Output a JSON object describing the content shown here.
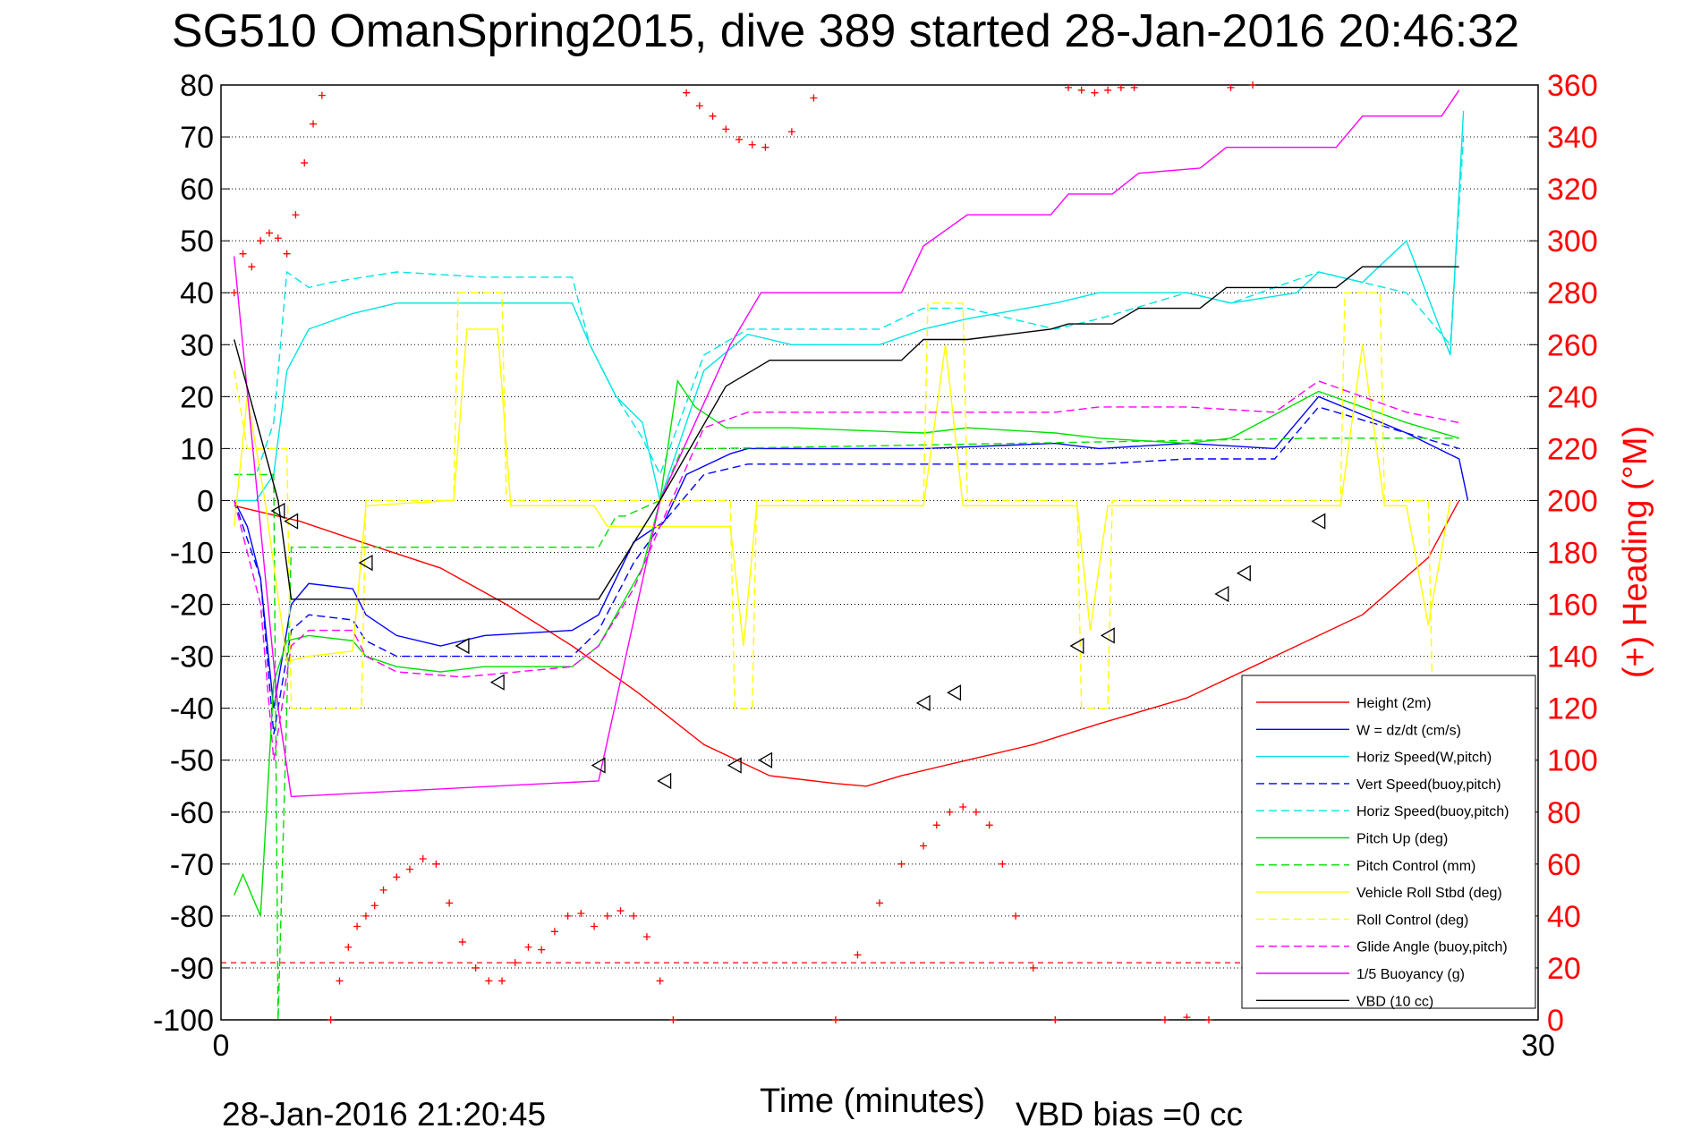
{
  "chart_data": {
    "type": "line",
    "title": "SG510 OmanSpring2015, dive 389 started 28-Jan-2016 20:46:32",
    "xlabel": "Time (minutes)",
    "ylabel_right": "(+) Heading (°M)",
    "footer_date": "28-Jan-2016 21:20:45",
    "footer_bias": "VBD bias =0 cc",
    "xlim": [
      0,
      30
    ],
    "ylim": [
      -100,
      80
    ],
    "ylim_right": [
      0,
      360
    ],
    "x_ticks": [
      "0",
      "30"
    ],
    "y_ticks": [
      "80",
      "70",
      "60",
      "50",
      "40",
      "30",
      "20",
      "10",
      "0",
      "-10",
      "-20",
      "-30",
      "-40",
      "-50",
      "-60",
      "-70",
      "-80",
      "-90",
      "-100"
    ],
    "y_ticks_right": [
      "360",
      "340",
      "320",
      "300",
      "280",
      "260",
      "240",
      "220",
      "200",
      "180",
      "160",
      "140",
      "120",
      "100",
      "80",
      "60",
      "40",
      "20",
      "0"
    ],
    "grid": true,
    "legend_position": "bottom-right",
    "series": [
      {
        "name": "Height (2m)",
        "color": "#ff0000",
        "dash": "",
        "x": [
          0.3,
          1.8,
          3.2,
          5.0,
          6.5,
          8.0,
          9.5,
          11.0,
          12.5,
          14.0,
          14.7,
          15.5,
          17.0,
          18.5,
          20.0,
          22.0,
          24.0,
          26.0,
          27.5,
          28.2
        ],
        "y": [
          -1,
          -4,
          -8,
          -13,
          -20,
          -28,
          -37,
          -47,
          -53,
          -54.5,
          -55,
          -53,
          -50,
          -47,
          -43,
          -38,
          -30,
          -22,
          -11,
          0
        ]
      },
      {
        "name": "W = dz/dt (cm/s)",
        "color": "#0000ff",
        "dash": "",
        "x": [
          0.3,
          0.6,
          0.9,
          1.2,
          1.6,
          2.0,
          3.0,
          3.3,
          4.0,
          5.0,
          6.0,
          8.0,
          8.6,
          9.4,
          10.1,
          10.6,
          11.6,
          12.0,
          14.0,
          16.0,
          19.0,
          20.0,
          22.0,
          24.0,
          25.0,
          27.0,
          28.2,
          28.4
        ],
        "y": [
          0,
          -5,
          -15,
          -40,
          -20,
          -16,
          -17,
          -22,
          -26,
          -28,
          -26,
          -25,
          -22,
          -8,
          -4,
          5,
          9,
          10,
          10,
          10,
          11,
          10,
          11,
          10,
          20,
          13,
          8,
          0
        ]
      },
      {
        "name": "Horiz Speed(W,pitch)",
        "color": "#00e5e5",
        "dash": "",
        "x": [
          0.3,
          0.8,
          1.2,
          1.5,
          2.0,
          3.0,
          4.0,
          6.0,
          8.0,
          8.4,
          9.0,
          9.6,
          10.0,
          11.0,
          12.0,
          13.0,
          15.0,
          16.0,
          17.0,
          19.0,
          20.0,
          22.0,
          23.0,
          24.5,
          25.0,
          26.0,
          27.0,
          28.0,
          28.3
        ],
        "y": [
          0,
          0,
          5,
          25,
          33,
          36,
          38,
          38,
          38,
          30,
          20,
          15,
          0,
          25,
          32,
          30,
          30,
          33,
          35,
          38,
          40,
          40,
          38,
          40,
          44,
          42,
          50,
          28,
          75
        ]
      },
      {
        "name": "Vert Speed(buoy,pitch)",
        "color": "#0000ff",
        "dash": "9,5",
        "x": [
          0.3,
          0.9,
          1.2,
          1.6,
          2.0,
          3.0,
          3.3,
          4.0,
          5.5,
          8.0,
          8.6,
          9.4,
          10.0,
          11.0,
          12.0,
          14.0,
          16.0,
          19.0,
          20.0,
          22.0,
          24.0,
          25.0,
          27.0,
          28.2
        ],
        "y": [
          0,
          -15,
          -45,
          -25,
          -22,
          -23,
          -27,
          -30,
          -30,
          -30,
          -25,
          -12,
          -5,
          5,
          7,
          7,
          7,
          7,
          7,
          8,
          8,
          18,
          13,
          10
        ]
      },
      {
        "name": "Horiz Speed(buoy,pitch)",
        "color": "#00e5e5",
        "dash": "9,5",
        "x": [
          0.3,
          0.8,
          1.2,
          1.5,
          2.0,
          2.5,
          4.0,
          6.0,
          8.0,
          8.4,
          9.0,
          9.6,
          10.0,
          11.0,
          12.0,
          15.0,
          16.0,
          17.0,
          19.0,
          20.0,
          22.0,
          23.0,
          25.0,
          27.0,
          28.0,
          28.3
        ],
        "y": [
          5,
          5,
          15,
          44,
          41,
          42,
          44,
          43,
          43,
          30,
          20,
          12,
          5,
          28,
          33,
          33,
          37,
          37,
          33,
          35,
          40,
          38,
          44,
          40,
          30,
          70
        ]
      },
      {
        "name": "Pitch Up (deg)",
        "color": "#00e000",
        "dash": "",
        "x": [
          0.3,
          0.5,
          0.7,
          0.9,
          1.2,
          1.5,
          2.0,
          3.0,
          3.3,
          4.0,
          5.0,
          6.0,
          8.0,
          8.6,
          9.6,
          10.0,
          10.4,
          10.8,
          11.5,
          13.0,
          16.0,
          17.0,
          19.0,
          20.0,
          22.0,
          23.0,
          25.0,
          27.0,
          28.2
        ],
        "y": [
          -76,
          -72,
          -76,
          -80,
          -35,
          -27,
          -26,
          -27,
          -30,
          -32,
          -33,
          -32,
          -32,
          -28,
          -13,
          0,
          23,
          18,
          14,
          14,
          13,
          14,
          13,
          12,
          11,
          12,
          21,
          15,
          12
        ]
      },
      {
        "name": "Pitch Control (mm)",
        "color": "#00e000",
        "dash": "9,5",
        "x": [
          0.3,
          1.2,
          1.3,
          1.6,
          8.6,
          9.0,
          9.2,
          10.0,
          10.5,
          11.2,
          25.0,
          28.2
        ],
        "y": [
          5,
          5,
          -100,
          -9,
          -9,
          -3,
          -3,
          0,
          10,
          10,
          12,
          12
        ]
      },
      {
        "name": "Vehicle Roll Stbd (deg)",
        "color": "#ffff00",
        "dash": "",
        "x": [
          0.3,
          0.6,
          1.0,
          1.5,
          2.0,
          3.0,
          3.3,
          5.3,
          5.6,
          6.3,
          6.6,
          8.5,
          8.8,
          11.6,
          11.9,
          12.2,
          16.0,
          16.5,
          16.9,
          19.5,
          19.8,
          20.2,
          25.5,
          26.0,
          26.5,
          27.0,
          27.5,
          28.0
        ],
        "y": [
          -5,
          20,
          0,
          -31,
          -30,
          -29,
          -1,
          0,
          33,
          33,
          -1,
          -1,
          -5,
          -5,
          -28,
          -1,
          -1,
          30,
          -1,
          -1,
          -25,
          -1,
          -1,
          30,
          -1,
          -1,
          -24,
          0
        ]
      },
      {
        "name": "Roll Control (deg)",
        "color": "#ffff00",
        "dash": "9,5",
        "x": [
          0.3,
          0.6,
          1.5,
          1.6,
          3.2,
          3.3,
          5.3,
          5.4,
          6.4,
          6.5,
          11.6,
          11.7,
          12.1,
          12.2,
          16.0,
          16.1,
          16.9,
          17.0,
          19.5,
          19.6,
          20.2,
          20.3,
          25.5,
          25.6,
          26.4,
          26.5,
          27.5,
          27.6
        ],
        "y": [
          25,
          10,
          10,
          -40,
          -40,
          0,
          0,
          40,
          40,
          0,
          0,
          -40,
          -40,
          0,
          0,
          38,
          38,
          0,
          0,
          -40,
          -40,
          0,
          0,
          40,
          40,
          0,
          0,
          -40
        ]
      },
      {
        "name": "Glide Angle (buoy,pitch)",
        "color": "#ff00ff",
        "dash": "9,5",
        "x": [
          0.3,
          0.9,
          1.2,
          1.6,
          2.0,
          3.0,
          3.3,
          4.0,
          5.5,
          8.0,
          8.6,
          9.4,
          10.0,
          11.0,
          12.0,
          14.0,
          16.0,
          19.0,
          20.0,
          22.0,
          24.0,
          25.0,
          27.0,
          28.2
        ],
        "y": [
          0,
          -20,
          -50,
          -28,
          -25,
          -25,
          -30,
          -33,
          -34,
          -32,
          -28,
          -17,
          -5,
          14,
          17,
          17,
          17,
          17,
          18,
          18,
          17,
          23,
          17,
          15
        ]
      },
      {
        "name": "1/5 Buoyancy (g)",
        "color": "#ff00ff",
        "dash": "",
        "x": [
          0.3,
          1.3,
          1.6,
          8.6,
          10.0,
          11.6,
          12.3,
          15.5,
          16.0,
          17.0,
          18.9,
          19.3,
          20.3,
          20.9,
          22.3,
          22.9,
          25.4,
          26.0,
          27.8,
          28.2
        ],
        "y": [
          47,
          -40,
          -57,
          -54,
          0,
          30,
          40,
          40,
          49,
          55,
          55,
          59,
          59,
          63,
          64,
          68,
          68,
          74,
          74,
          79
        ]
      },
      {
        "name": "VBD (10 cc)",
        "color": "#000000",
        "dash": "",
        "x": [
          0.3,
          1.3,
          1.6,
          8.6,
          10.0,
          11.5,
          12.5,
          15.5,
          16.0,
          17.0,
          18.9,
          19.3,
          20.3,
          20.9,
          22.3,
          22.9,
          25.4,
          26.0,
          27.8,
          28.2
        ],
        "y": [
          31,
          0,
          -19,
          -19,
          0,
          22,
          27,
          27,
          31,
          31,
          33,
          34,
          34,
          37,
          37,
          41,
          41,
          45,
          45,
          45
        ]
      }
    ],
    "heading_marks": {
      "name": "Heading (+)",
      "color": "#ff0000",
      "x": [
        0.3,
        0.5,
        0.7,
        0.9,
        1.1,
        1.3,
        1.5,
        1.7,
        1.9,
        2.1,
        2.3,
        2.5,
        2.7,
        2.9,
        3.1,
        3.3,
        3.5,
        3.7,
        4.0,
        4.3,
        4.6,
        4.9,
        5.2,
        5.5,
        5.8,
        6.1,
        6.4,
        6.7,
        7.0,
        7.3,
        7.6,
        7.9,
        8.2,
        8.5,
        8.8,
        9.1,
        9.4,
        9.7,
        10.0,
        10.3,
        10.6,
        10.9,
        11.2,
        11.5,
        11.8,
        12.1,
        12.4,
        13.0,
        13.5,
        14.0,
        14.5,
        15.0,
        15.5,
        16.0,
        16.3,
        16.6,
        16.9,
        17.2,
        17.5,
        17.8,
        18.1,
        18.5,
        19.0,
        19.3,
        19.6,
        19.9,
        20.2,
        20.5,
        20.8,
        21.5,
        22.0,
        22.5,
        23.0,
        23.5
      ],
      "y": [
        280,
        295,
        290,
        300,
        303,
        301,
        295,
        310,
        330,
        345,
        356,
        0,
        15,
        28,
        36,
        40,
        44,
        50,
        55,
        58,
        62,
        60,
        45,
        30,
        20,
        15,
        15,
        22,
        28,
        27,
        34,
        40,
        41,
        36,
        40,
        42,
        40,
        32,
        15,
        0,
        357,
        352,
        348,
        343,
        339,
        337,
        336,
        342,
        355,
        0,
        25,
        45,
        60,
        67,
        75,
        80,
        82,
        80,
        75,
        60,
        40,
        20,
        0,
        359,
        358,
        357,
        358,
        359,
        359,
        0,
        1,
        0,
        359,
        360
      ]
    },
    "profile_markers": {
      "color": "#000000",
      "x": [
        1.3,
        1.6,
        3.3,
        5.5,
        6.3,
        8.6,
        10.1,
        11.7,
        12.4,
        16.0,
        16.7,
        19.5,
        20.2,
        22.8,
        23.3,
        25.0
      ],
      "y": [
        -2,
        -4,
        -12,
        -28,
        -35,
        -51,
        -54,
        -51,
        -50,
        -39,
        -37,
        -28,
        -26,
        -18,
        -14,
        -4
      ]
    },
    "reference_line": {
      "color": "#ff0000",
      "y": -89,
      "dash": "6,5"
    }
  }
}
